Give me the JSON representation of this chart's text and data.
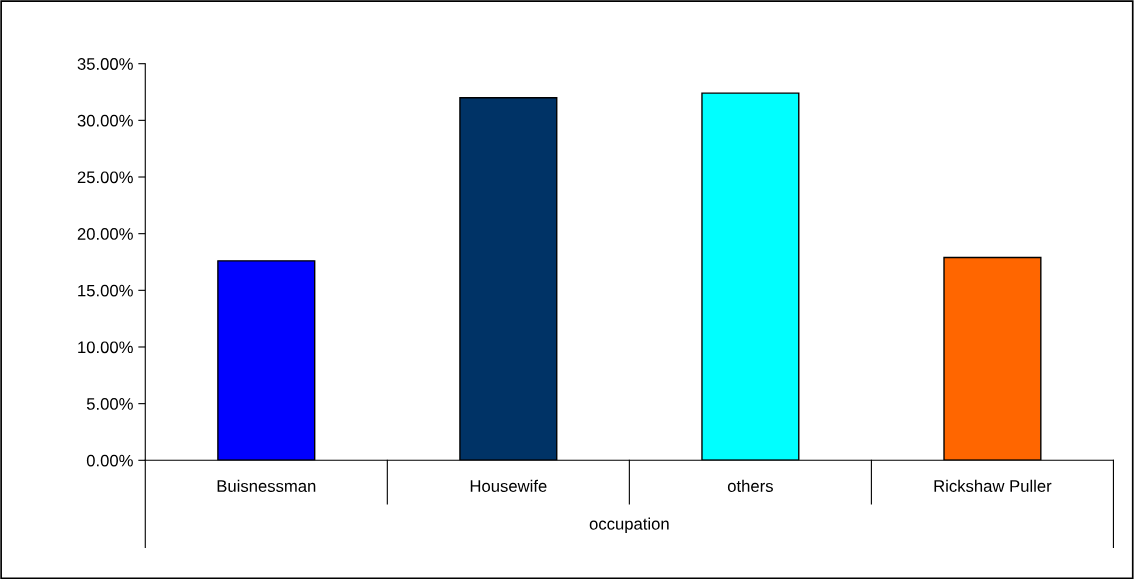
{
  "chart_data": {
    "type": "bar",
    "xlabel": "occupation",
    "categories": [
      "Buisnessman",
      "Housewife",
      "others",
      "Rickshaw Puller"
    ],
    "values": [
      17.6,
      32.0,
      32.4,
      17.9
    ],
    "colors": [
      "#0000ff",
      "#003366",
      "#00ffff",
      "#ff6600"
    ],
    "ylim": [
      0,
      35
    ],
    "yticks": [
      {
        "value": 0,
        "label": "0.00%"
      },
      {
        "value": 5,
        "label": "5.00%"
      },
      {
        "value": 10,
        "label": "10.00%"
      },
      {
        "value": 15,
        "label": "15.00%"
      },
      {
        "value": 20,
        "label": "20.00%"
      },
      {
        "value": 25,
        "label": "25.00%"
      },
      {
        "value": 30,
        "label": "30.00%"
      },
      {
        "value": 35,
        "label": "35.00%"
      }
    ],
    "grid": false
  }
}
